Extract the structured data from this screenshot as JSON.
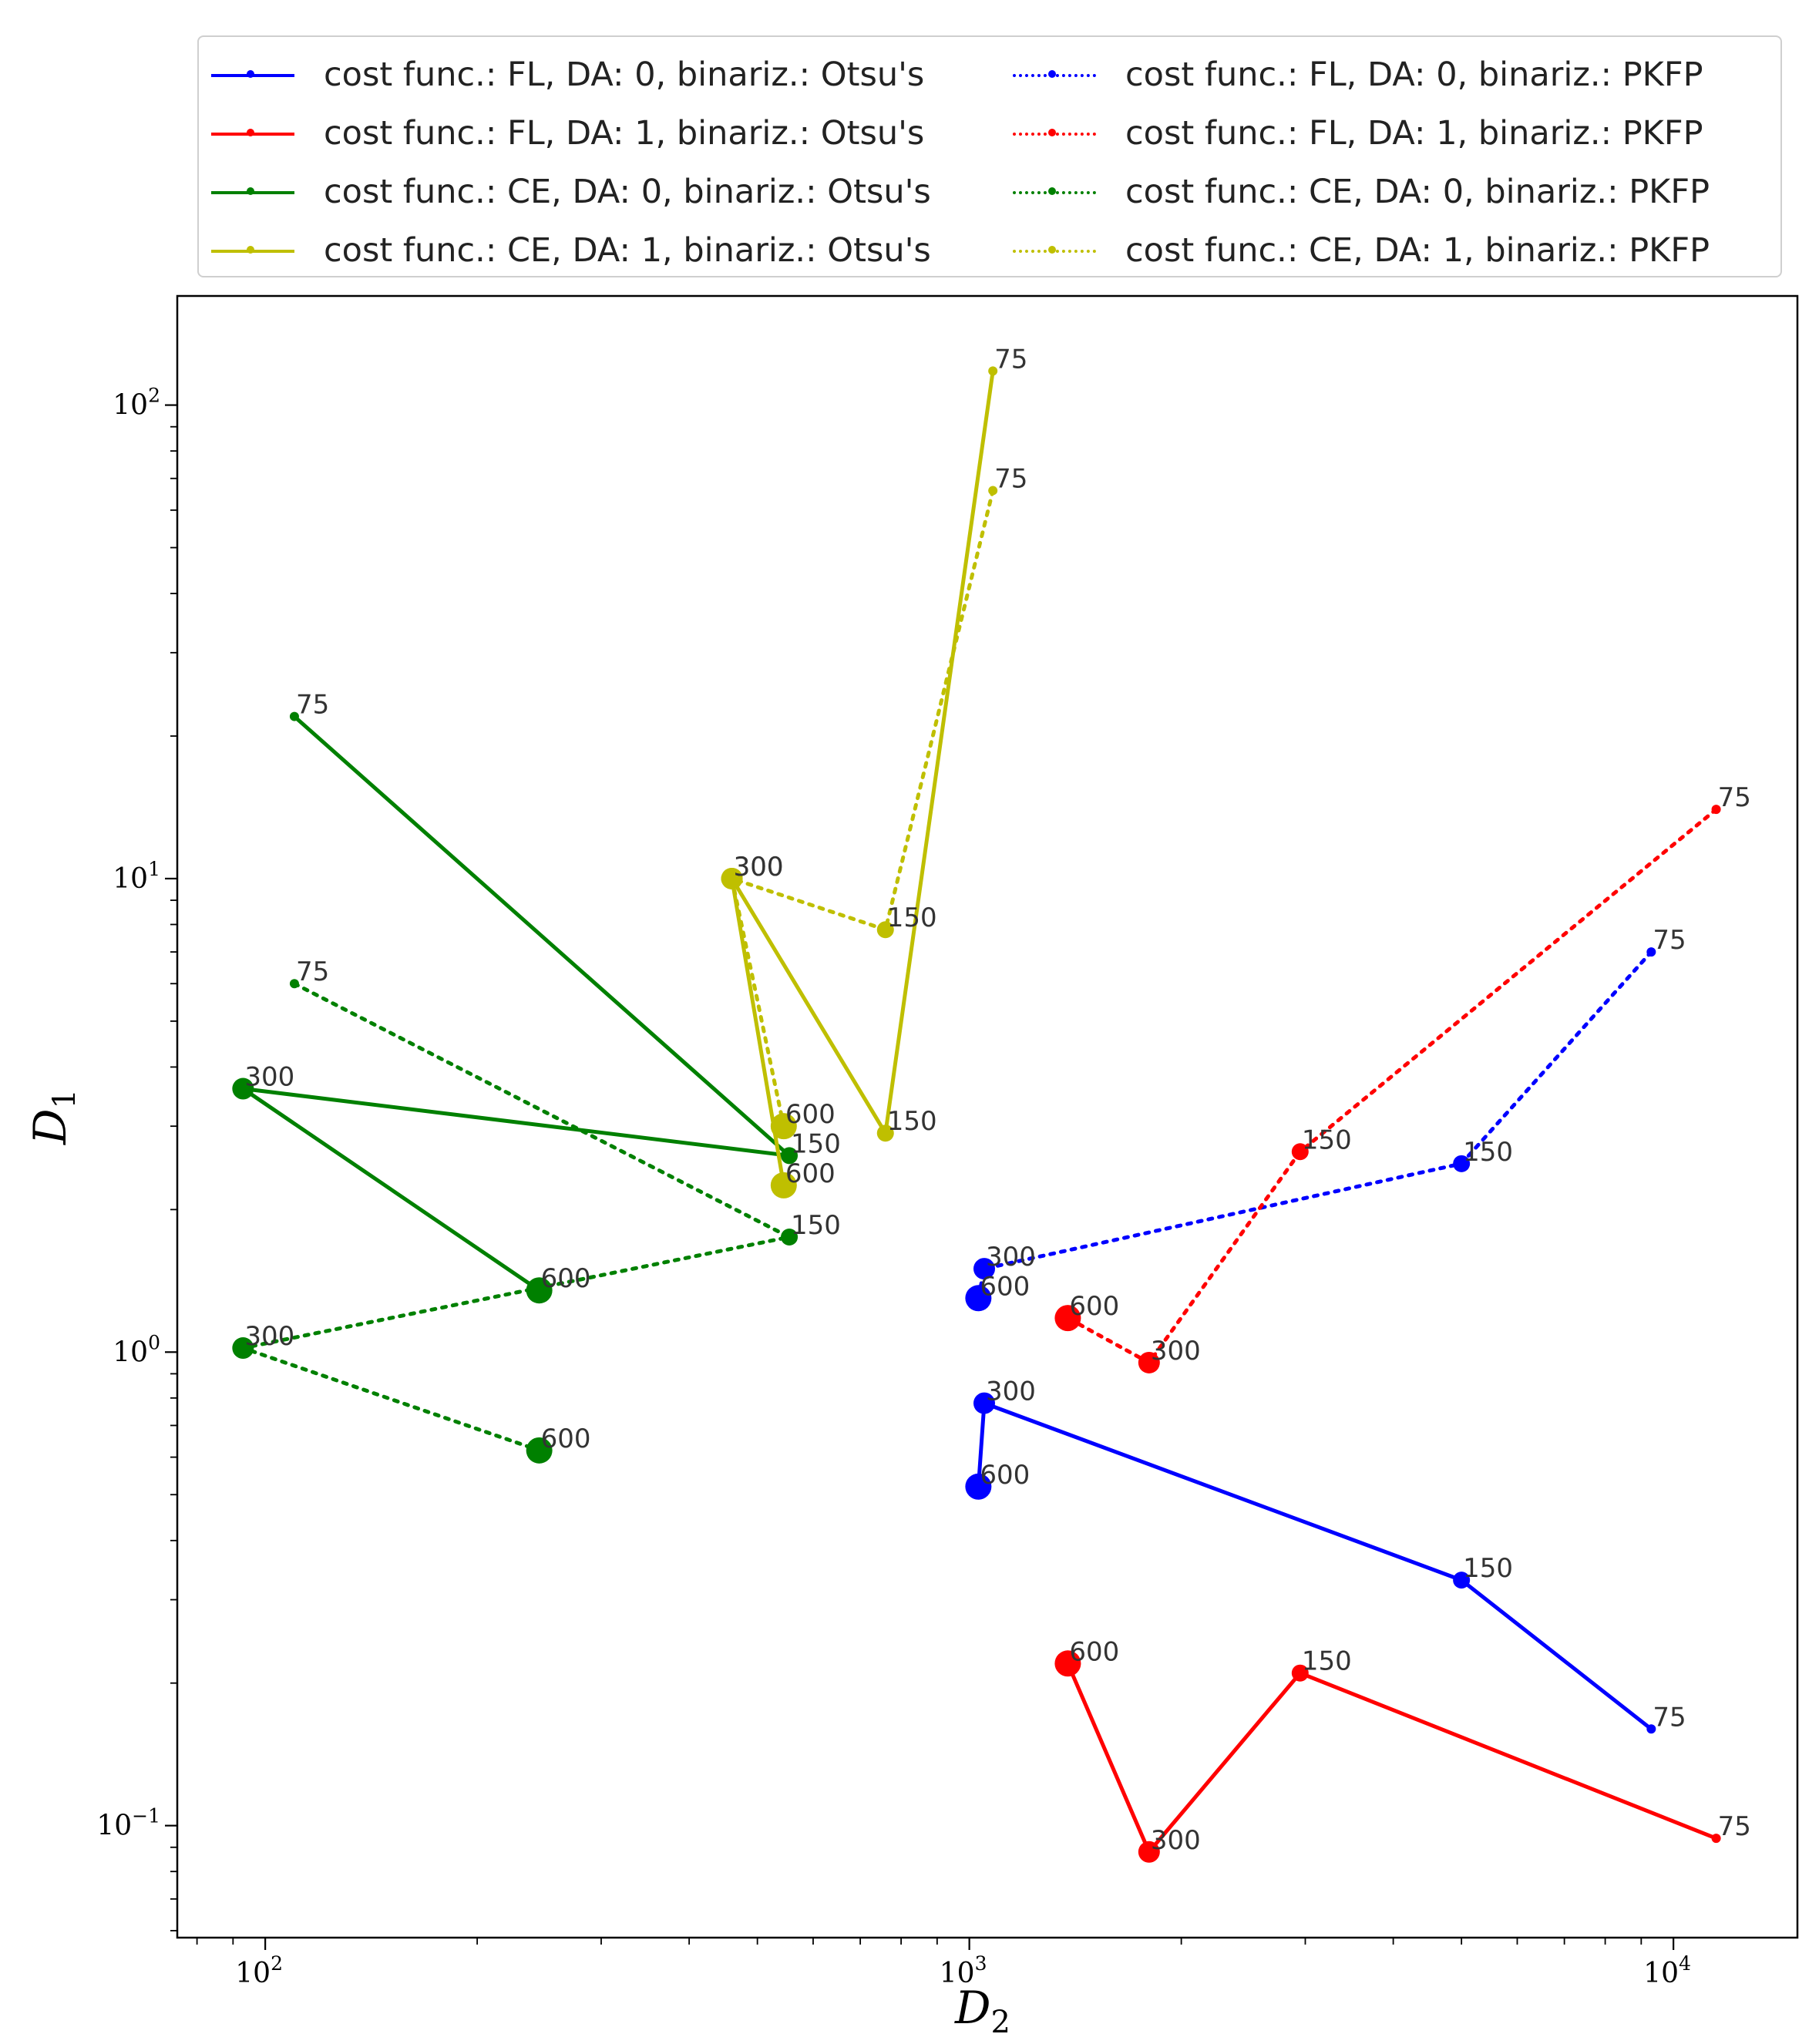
{
  "chart_data": {
    "type": "line",
    "title": "",
    "xlabel": "D2",
    "ylabel": "D1",
    "xscale": "log",
    "yscale": "log",
    "xlim": [
      75,
      15000
    ],
    "ylim": [
      0.058,
      170
    ],
    "x_ticks": [
      {
        "value": 100,
        "base": "10",
        "exp": "2"
      },
      {
        "value": 1000,
        "base": "10",
        "exp": "3"
      },
      {
        "value": 10000,
        "base": "10",
        "exp": "4"
      }
    ],
    "y_ticks": [
      {
        "value": 0.1,
        "base": "10",
        "exp": "−1"
      },
      {
        "value": 1,
        "base": "10",
        "exp": "0"
      },
      {
        "value": 10,
        "base": "10",
        "exp": "1"
      },
      {
        "value": 100,
        "base": "10",
        "exp": "2"
      }
    ],
    "legend_position": "top (above plot)",
    "series": [
      {
        "name": "cost func.: FL, DA: 0, binariz.: Otsu's",
        "color": "#0000ff",
        "style": "solid",
        "points": [
          {
            "x": 9300,
            "y": 0.16,
            "label": "75"
          },
          {
            "x": 5000,
            "y": 0.33,
            "label": "150"
          },
          {
            "x": 1050,
            "y": 0.78,
            "label": "300"
          },
          {
            "x": 1030,
            "y": 0.52,
            "label": "600"
          }
        ]
      },
      {
        "name": "cost func.: FL, DA: 1, binariz.: Otsu's",
        "color": "#ff0000",
        "style": "solid",
        "points": [
          {
            "x": 11500,
            "y": 0.094,
            "label": "75"
          },
          {
            "x": 2950,
            "y": 0.21,
            "label": "150"
          },
          {
            "x": 1800,
            "y": 0.088,
            "label": "300"
          },
          {
            "x": 1380,
            "y": 0.22,
            "label": "600"
          }
        ]
      },
      {
        "name": "cost func.: CE, DA: 0, binariz.: Otsu's",
        "color": "#008000",
        "style": "solid",
        "points": [
          {
            "x": 110,
            "y": 22,
            "label": "75"
          },
          {
            "x": 555,
            "y": 2.6,
            "label": "150"
          },
          {
            "x": 93,
            "y": 3.6,
            "label": "300"
          },
          {
            "x": 245,
            "y": 1.35,
            "label": "600"
          }
        ]
      },
      {
        "name": "cost func.: CE, DA: 1, binariz.: Otsu's",
        "color": "#bfbf00",
        "style": "solid",
        "points": [
          {
            "x": 1080,
            "y": 118,
            "label": "75"
          },
          {
            "x": 760,
            "y": 2.9,
            "label": "150"
          },
          {
            "x": 460,
            "y": 10,
            "label": "300"
          },
          {
            "x": 545,
            "y": 2.25,
            "label": "600"
          }
        ]
      },
      {
        "name": "cost func.: FL, DA: 0, binariz.: PKFP",
        "color": "#0000ff",
        "style": "dotted",
        "points": [
          {
            "x": 9300,
            "y": 7,
            "label": "75"
          },
          {
            "x": 5000,
            "y": 2.5,
            "label": "150"
          },
          {
            "x": 1050,
            "y": 1.5,
            "label": "300"
          },
          {
            "x": 1030,
            "y": 1.3,
            "label": "600"
          }
        ]
      },
      {
        "name": "cost func.: FL, DA: 1, binariz.: PKFP",
        "color": "#ff0000",
        "style": "dotted",
        "points": [
          {
            "x": 11500,
            "y": 14,
            "label": "75"
          },
          {
            "x": 2950,
            "y": 2.65,
            "label": "150"
          },
          {
            "x": 1800,
            "y": 0.95,
            "label": "300"
          },
          {
            "x": 1380,
            "y": 1.18,
            "label": "600"
          }
        ]
      },
      {
        "name": "cost func.: CE, DA: 0, binariz.: PKFP",
        "color": "#008000",
        "style": "dotted",
        "points": [
          {
            "x": 110,
            "y": 6,
            "label": "75"
          },
          {
            "x": 555,
            "y": 1.75,
            "label": "150"
          },
          {
            "x": 93,
            "y": 1.02,
            "label": "300"
          },
          {
            "x": 245,
            "y": 0.62,
            "label": "600"
          }
        ]
      },
      {
        "name": "cost func.: CE, DA: 1, binariz.: PKFP",
        "color": "#bfbf00",
        "style": "dotted",
        "points": [
          {
            "x": 1080,
            "y": 66,
            "label": "75"
          },
          {
            "x": 760,
            "y": 7.8,
            "label": "150"
          },
          {
            "x": 460,
            "y": 10,
            "label": "300"
          },
          {
            "x": 545,
            "y": 3.0,
            "label": "600"
          }
        ]
      }
    ]
  }
}
